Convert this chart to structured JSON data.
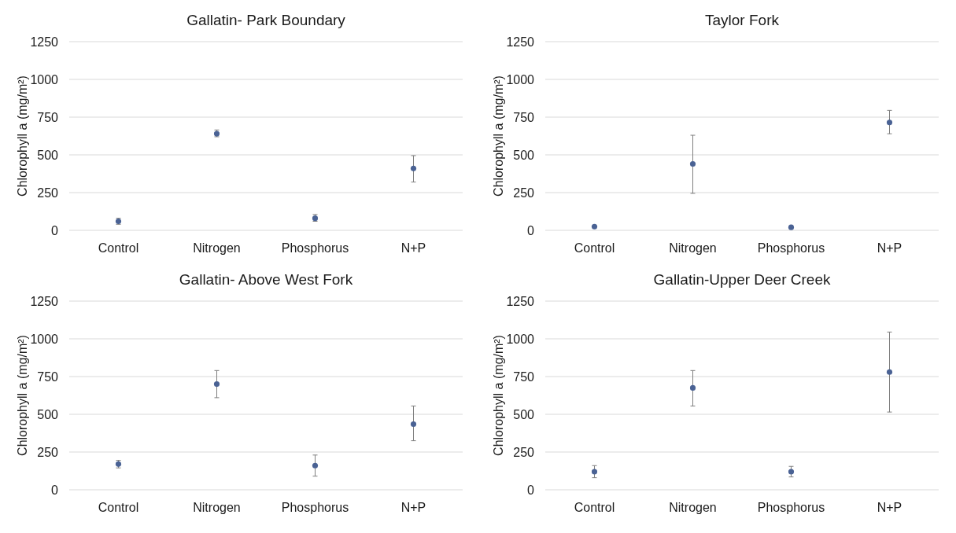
{
  "chart_data": [
    {
      "type": "scatter",
      "title": "Gallatin- Park Boundary",
      "ylabel": "Chlorophyll a (mg/m²)",
      "categories": [
        "Control",
        "Nitrogen",
        "Phosphorus",
        "N+P"
      ],
      "series": [
        {
          "color": "#4a6294",
          "values": [
            60,
            640,
            80,
            410
          ],
          "errors": [
            [
              40,
              80
            ],
            [
              620,
              665
            ],
            [
              60,
              105
            ],
            [
              320,
              495
            ]
          ]
        }
      ],
      "ylim": [
        0,
        1250
      ],
      "yticks": [
        0,
        250,
        500,
        750,
        1000,
        1250
      ],
      "grid": "y",
      "marker": "circle"
    },
    {
      "type": "scatter",
      "title": "Taylor Fork",
      "ylabel": "Chlorophyll a (mg/m²)",
      "categories": [
        "Control",
        "Nitrogen",
        "Phosphorus",
        "N+P"
      ],
      "series": [
        {
          "color": "#4a6294",
          "values": [
            25,
            440,
            20,
            715
          ],
          "errors": [
            null,
            [
              245,
              630
            ],
            null,
            [
              640,
              795
            ]
          ]
        }
      ],
      "ylim": [
        0,
        1250
      ],
      "yticks": [
        0,
        250,
        500,
        750,
        1000,
        1250
      ],
      "grid": "y",
      "marker": "circle"
    },
    {
      "type": "scatter",
      "title": "Gallatin- Above West Fork",
      "ylabel": "Chlorophyll a (mg/m²)",
      "categories": [
        "Control",
        "Nitrogen",
        "Phosphorus",
        "N+P"
      ],
      "series": [
        {
          "color": "#4a6294",
          "values": [
            170,
            700,
            160,
            435
          ],
          "errors": [
            [
              145,
              195
            ],
            [
              610,
              790
            ],
            [
              90,
              230
            ],
            [
              325,
              555
            ]
          ]
        }
      ],
      "ylim": [
        0,
        1250
      ],
      "yticks": [
        0,
        250,
        500,
        750,
        1000,
        1250
      ],
      "grid": "y",
      "marker": "circle"
    },
    {
      "type": "scatter",
      "title": "Gallatin-Upper Deer Creek",
      "ylabel": "Chlorophyll a (mg/m²)",
      "categories": [
        "Control",
        "Nitrogen",
        "Phosphorus",
        "N+P"
      ],
      "series": [
        {
          "color": "#4a6294",
          "values": [
            120,
            675,
            120,
            780
          ],
          "errors": [
            [
              80,
              160
            ],
            [
              555,
              790
            ],
            [
              85,
              155
            ],
            [
              515,
              1045
            ]
          ]
        }
      ],
      "ylim": [
        0,
        1250
      ],
      "yticks": [
        0,
        250,
        500,
        750,
        1000,
        1250
      ],
      "grid": "y",
      "marker": "circle"
    }
  ]
}
